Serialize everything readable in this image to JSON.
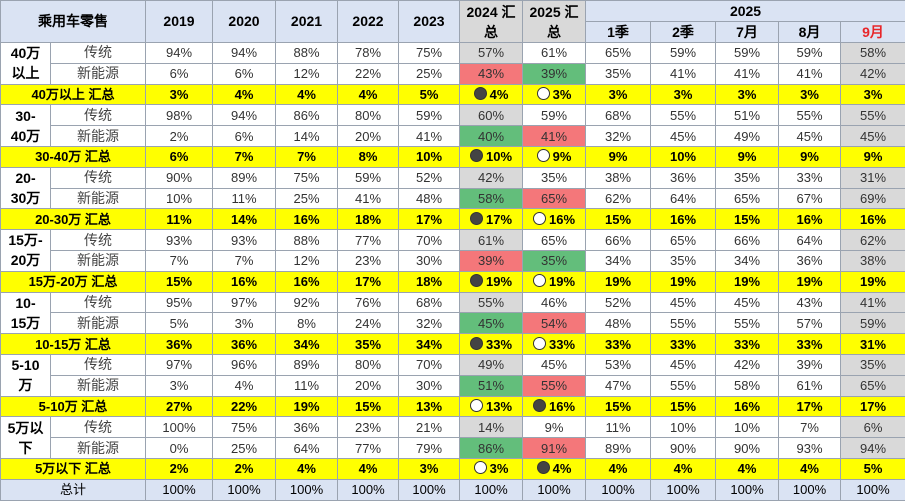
{
  "header": {
    "title": "乘用车零售",
    "years": [
      "2019",
      "2020",
      "2021",
      "2022",
      "2023"
    ],
    "y2024": "2024 汇总",
    "y2025": "2025 汇总",
    "group_2025": "2025",
    "periods": [
      "1季",
      "2季",
      "7月",
      "8月",
      "9月"
    ]
  },
  "row_labels": {
    "trad": "传统",
    "nev": "新能源"
  },
  "colors": {
    "header_bg": "#dae3f3",
    "summary_bg": "#ffff00",
    "gray": "#d9d9d9",
    "red": "#f4777a",
    "green": "#63be7b",
    "highlight_text": "#e8262a"
  },
  "groups": [
    {
      "label_top": "40万",
      "label_bottom": "以上",
      "summary_label": "40万以上 汇总",
      "trad": [
        "94%",
        "94%",
        "88%",
        "78%",
        "75%",
        "57%",
        "61%",
        "65%",
        "59%",
        "59%",
        "59%",
        "58%"
      ],
      "nev": [
        "6%",
        "6%",
        "12%",
        "22%",
        "25%",
        "43%",
        "39%",
        "35%",
        "41%",
        "41%",
        "41%",
        "42%"
      ],
      "total": [
        "3%",
        "4%",
        "4%",
        "4%",
        "5%",
        "4%",
        "3%",
        "3%",
        "3%",
        "3%",
        "3%",
        "3%"
      ],
      "nev_2024": "red",
      "nev_2025": "green",
      "marker_2024": "filled",
      "marker_2025": "empty"
    },
    {
      "label_top": "30-",
      "label_bottom": "40万",
      "summary_label": "30-40万 汇总",
      "trad": [
        "98%",
        "94%",
        "86%",
        "80%",
        "59%",
        "60%",
        "59%",
        "68%",
        "55%",
        "51%",
        "55%",
        "55%"
      ],
      "nev": [
        "2%",
        "6%",
        "14%",
        "20%",
        "41%",
        "40%",
        "41%",
        "32%",
        "45%",
        "49%",
        "45%",
        "45%"
      ],
      "total": [
        "6%",
        "7%",
        "7%",
        "8%",
        "10%",
        "10%",
        "9%",
        "9%",
        "10%",
        "9%",
        "9%",
        "9%"
      ],
      "nev_2024": "green",
      "nev_2025": "red",
      "marker_2024": "filled",
      "marker_2025": "empty"
    },
    {
      "label_top": "20-",
      "label_bottom": "30万",
      "summary_label": "20-30万 汇总",
      "trad": [
        "90%",
        "89%",
        "75%",
        "59%",
        "52%",
        "42%",
        "35%",
        "38%",
        "36%",
        "35%",
        "33%",
        "31%"
      ],
      "nev": [
        "10%",
        "11%",
        "25%",
        "41%",
        "48%",
        "58%",
        "65%",
        "62%",
        "64%",
        "65%",
        "67%",
        "69%"
      ],
      "total": [
        "11%",
        "14%",
        "16%",
        "18%",
        "17%",
        "17%",
        "16%",
        "15%",
        "16%",
        "15%",
        "16%",
        "16%"
      ],
      "nev_2024": "green",
      "nev_2025": "red",
      "marker_2024": "filled",
      "marker_2025": "empty"
    },
    {
      "label_top": "15万-",
      "label_bottom": "20万",
      "summary_label": "15万-20万 汇总",
      "trad": [
        "93%",
        "93%",
        "88%",
        "77%",
        "70%",
        "61%",
        "65%",
        "66%",
        "65%",
        "66%",
        "64%",
        "62%"
      ],
      "nev": [
        "7%",
        "7%",
        "12%",
        "23%",
        "30%",
        "39%",
        "35%",
        "34%",
        "35%",
        "34%",
        "36%",
        "38%"
      ],
      "total": [
        "15%",
        "16%",
        "16%",
        "17%",
        "18%",
        "19%",
        "19%",
        "19%",
        "19%",
        "19%",
        "19%",
        "19%"
      ],
      "nev_2024": "red",
      "nev_2025": "green",
      "marker_2024": "filled",
      "marker_2025": "empty"
    },
    {
      "label_top": "10-",
      "label_bottom": "15万",
      "summary_label": "10-15万 汇总",
      "trad": [
        "95%",
        "97%",
        "92%",
        "76%",
        "68%",
        "55%",
        "46%",
        "52%",
        "45%",
        "45%",
        "43%",
        "41%"
      ],
      "nev": [
        "5%",
        "3%",
        "8%",
        "24%",
        "32%",
        "45%",
        "54%",
        "48%",
        "55%",
        "55%",
        "57%",
        "59%"
      ],
      "total": [
        "36%",
        "36%",
        "34%",
        "35%",
        "34%",
        "33%",
        "33%",
        "33%",
        "33%",
        "33%",
        "33%",
        "31%"
      ],
      "nev_2024": "green",
      "nev_2025": "red",
      "marker_2024": "filled",
      "marker_2025": "empty"
    },
    {
      "label_top": "5-10",
      "label_bottom": "万",
      "summary_label": "5-10万 汇总",
      "trad": [
        "97%",
        "96%",
        "89%",
        "80%",
        "70%",
        "49%",
        "45%",
        "53%",
        "45%",
        "42%",
        "39%",
        "35%"
      ],
      "nev": [
        "3%",
        "4%",
        "11%",
        "20%",
        "30%",
        "51%",
        "55%",
        "47%",
        "55%",
        "58%",
        "61%",
        "65%"
      ],
      "total": [
        "27%",
        "22%",
        "19%",
        "15%",
        "13%",
        "13%",
        "16%",
        "15%",
        "15%",
        "16%",
        "17%",
        "17%"
      ],
      "nev_2024": "green",
      "nev_2025": "red",
      "marker_2024": "empty",
      "marker_2025": "filled"
    },
    {
      "label_top": "5万以",
      "label_bottom": "下",
      "summary_label": "5万以下 汇总",
      "trad": [
        "100%",
        "75%",
        "36%",
        "23%",
        "21%",
        "14%",
        "9%",
        "11%",
        "10%",
        "10%",
        "7%",
        "6%"
      ],
      "nev": [
        "0%",
        "25%",
        "64%",
        "77%",
        "79%",
        "86%",
        "91%",
        "89%",
        "90%",
        "90%",
        "93%",
        "94%"
      ],
      "total": [
        "2%",
        "2%",
        "4%",
        "4%",
        "3%",
        "3%",
        "4%",
        "4%",
        "4%",
        "4%",
        "4%",
        "5%"
      ],
      "nev_2024": "green",
      "nev_2025": "red",
      "marker_2024": "empty",
      "marker_2025": "filled"
    }
  ],
  "grand_total": {
    "label": "总计",
    "values": [
      "100%",
      "100%",
      "100%",
      "100%",
      "100%",
      "100%",
      "100%",
      "100%",
      "100%",
      "100%",
      "100%",
      "100%"
    ]
  }
}
